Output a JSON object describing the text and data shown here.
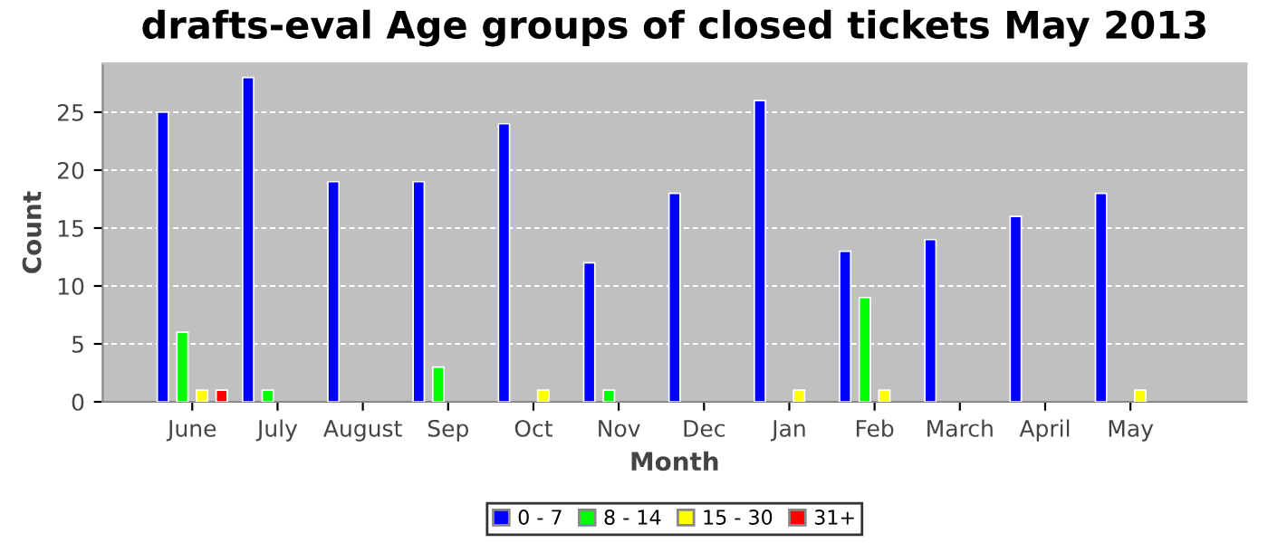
{
  "chart_data": {
    "type": "bar",
    "title": "drafts-eval Age groups of closed tickets May 2013",
    "xlabel": "Month",
    "ylabel": "Count",
    "categories": [
      "June",
      "July",
      "August",
      "Sep",
      "Oct",
      "Nov",
      "Dec",
      "Jan",
      "Feb",
      "March",
      "April",
      "May"
    ],
    "series": [
      {
        "name": "0 - 7",
        "color": "#0000ff",
        "values": [
          25,
          28,
          19,
          19,
          24,
          12,
          18,
          26,
          13,
          14,
          16,
          18
        ]
      },
      {
        "name": "8 - 14",
        "color": "#00ff00",
        "values": [
          6,
          1,
          null,
          3,
          null,
          1,
          null,
          null,
          9,
          null,
          null,
          null
        ]
      },
      {
        "name": "15 - 30",
        "color": "#ffff00",
        "values": [
          1,
          null,
          null,
          null,
          1,
          null,
          null,
          1,
          1,
          null,
          null,
          1
        ]
      },
      {
        "name": "31+",
        "color": "#ff0000",
        "values": [
          1,
          null,
          null,
          null,
          null,
          null,
          null,
          null,
          null,
          null,
          null,
          null
        ]
      }
    ],
    "ylim": [
      0,
      29.2
    ],
    "yticks": [
      0,
      5,
      10,
      15,
      20,
      25
    ],
    "grid": "y",
    "legend": "bottom"
  }
}
